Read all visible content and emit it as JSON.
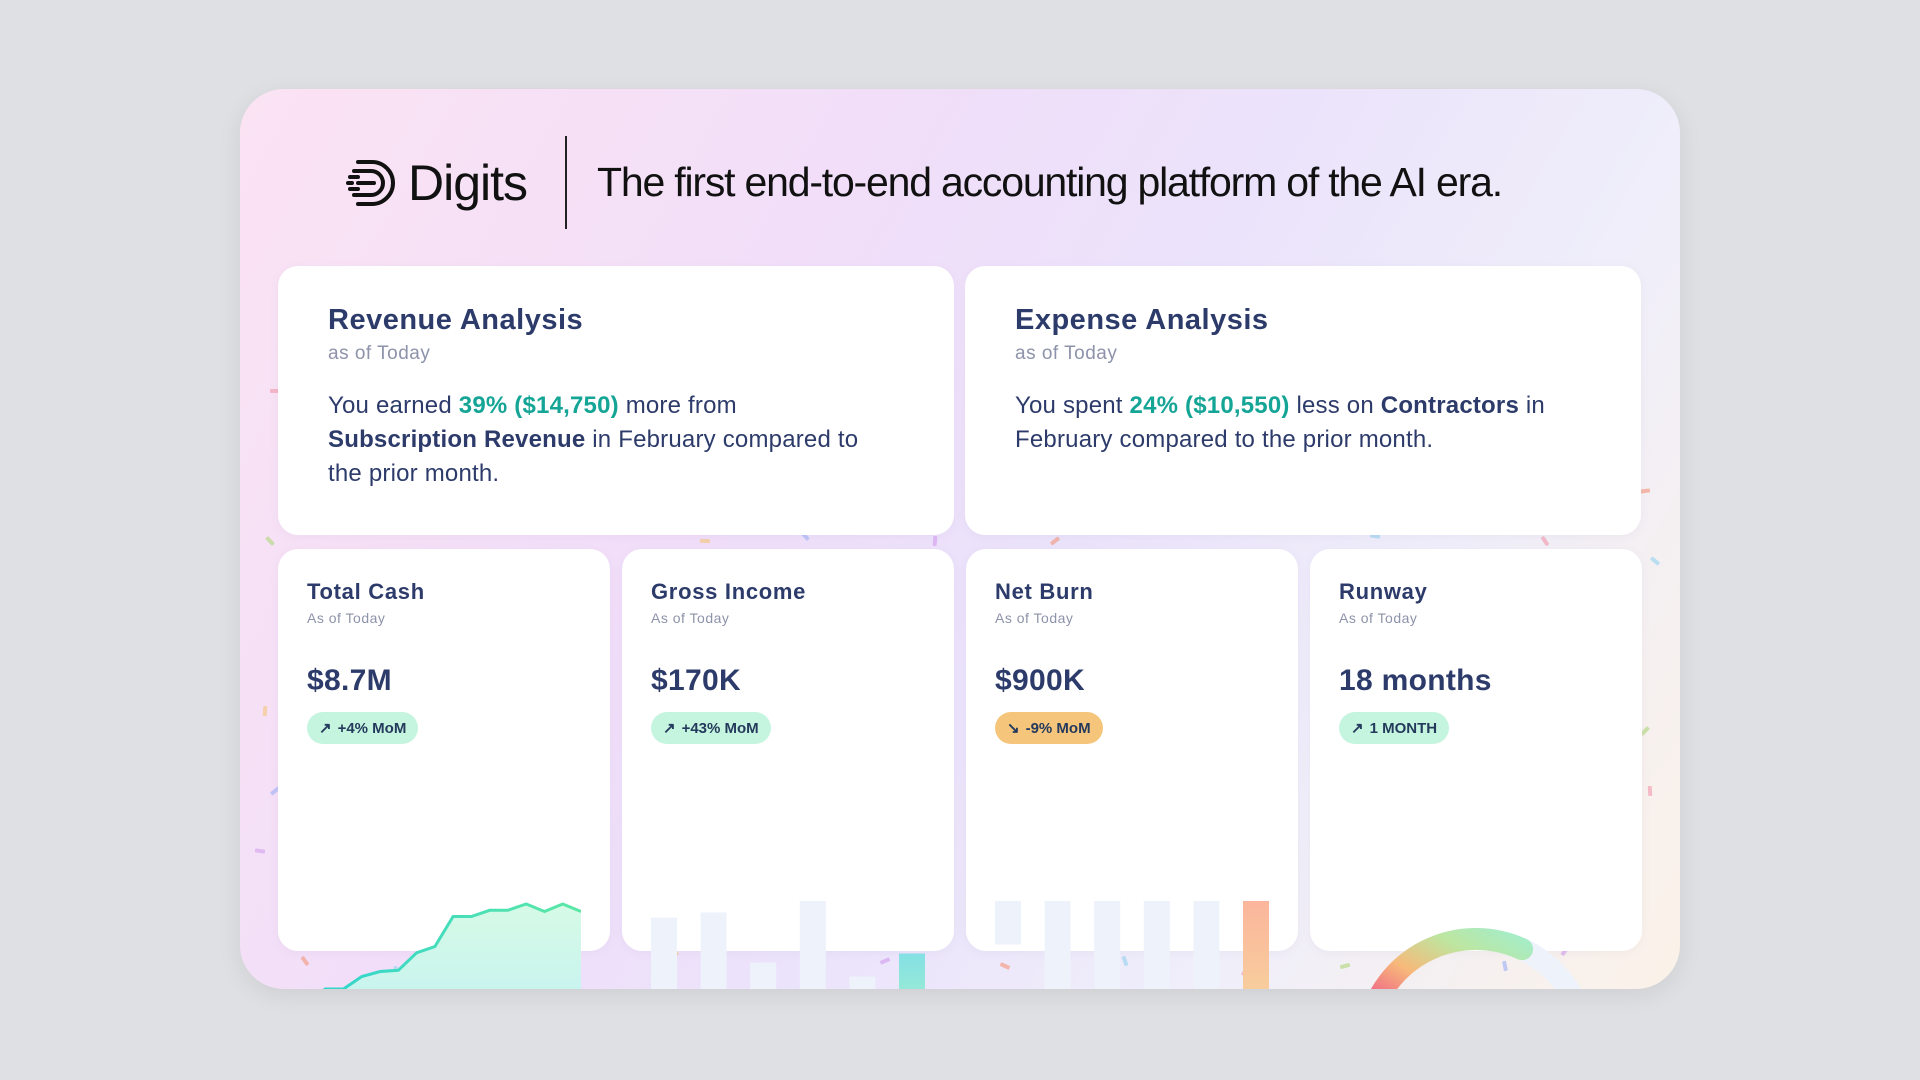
{
  "header": {
    "brand": "Digits",
    "tagline": "The first end-to-end accounting platform of the AI era."
  },
  "revenue": {
    "title": "Revenue Analysis",
    "subtitle": "as of Today",
    "text_pre": "You earned ",
    "highlight": "39% ($14,750)",
    "text_mid": " more from ",
    "bold": "Subscription Revenue",
    "text_post": " in February compared to the prior month."
  },
  "expense": {
    "title": "Expense Analysis",
    "subtitle": "as of Today",
    "text_pre": "You spent ",
    "highlight": "24% ($10,550)",
    "text_mid": " less on ",
    "bold": "Contractors",
    "text_post": " in February compared to the prior month."
  },
  "metrics": [
    {
      "title": "Total Cash",
      "subtitle": "As of Today",
      "value": "$8.7M",
      "badge": "+4% MoM",
      "trend": "up",
      "badge_color": "#c6f5df",
      "chart": {
        "type": "area",
        "values": [
          22,
          32,
          32,
          42,
          46,
          47,
          61,
          66,
          90,
          90,
          95,
          95,
          100,
          94,
          100,
          94
        ]
      }
    },
    {
      "title": "Gross Income",
      "subtitle": "As of Today",
      "value": "$170K",
      "badge": "+43% MoM",
      "trend": "up",
      "badge_color": "#c6f5df",
      "chart": {
        "type": "bar",
        "values": [
          87,
          91,
          52,
          100,
          41,
          59
        ],
        "highlight_last": true
      }
    },
    {
      "title": "Net Burn",
      "subtitle": "As of Today",
      "value": "$900K",
      "badge": "-9% MoM",
      "trend": "down",
      "badge_color": "#f5c57c",
      "chart": {
        "type": "floating-bar",
        "ranges": [
          [
            66,
            100
          ],
          [
            24,
            100
          ],
          [
            12,
            100
          ],
          [
            24,
            100
          ],
          [
            12,
            100
          ],
          [
            0,
            100
          ]
        ],
        "highlight_last": true
      }
    },
    {
      "title": "Runway",
      "subtitle": "As of Today",
      "value": "18 months",
      "badge": "1 MONTH",
      "trend": "up",
      "badge_color": "#c6f5df",
      "chart": {
        "type": "gauge",
        "fraction": 0.66
      }
    }
  ],
  "colors": {
    "navy": "#2d3b6b",
    "teal": "#15a596",
    "muted": "#8d93aa"
  }
}
